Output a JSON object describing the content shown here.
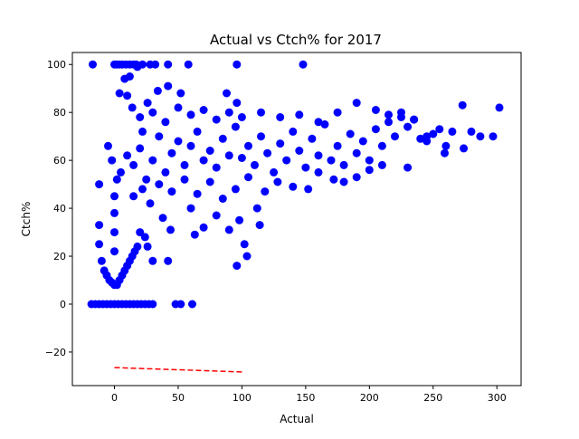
{
  "chart_data": {
    "type": "scatter",
    "title": "Actual vs Ctch% for 2017",
    "xlabel": "Actual",
    "ylabel": "Ctch%",
    "xlim": [
      -33,
      319
    ],
    "ylim": [
      -34,
      105
    ],
    "xticks": [
      0,
      50,
      100,
      150,
      200,
      250,
      300
    ],
    "yticks": [
      -20,
      0,
      20,
      40,
      60,
      80,
      100
    ],
    "grid": false,
    "legend": "none",
    "colors": {
      "points": "#0000ff",
      "trend": "#ff0000"
    },
    "series": [
      {
        "type": "scatter",
        "points": [
          [
            -17,
            100
          ],
          [
            0,
            100
          ],
          [
            2,
            100
          ],
          [
            4,
            100
          ],
          [
            6,
            100
          ],
          [
            9,
            100
          ],
          [
            12,
            100
          ],
          [
            15,
            100
          ],
          [
            17,
            100
          ],
          [
            22,
            100
          ],
          [
            28,
            100
          ],
          [
            32,
            100
          ],
          [
            42,
            100
          ],
          [
            58,
            100
          ],
          [
            96,
            100
          ],
          [
            148,
            100
          ],
          [
            -18,
            0
          ],
          [
            -15,
            0
          ],
          [
            -12,
            0
          ],
          [
            -9,
            0
          ],
          [
            -6,
            0
          ],
          [
            -3,
            0
          ],
          [
            0,
            0
          ],
          [
            3,
            0
          ],
          [
            6,
            0
          ],
          [
            9,
            0
          ],
          [
            12,
            0
          ],
          [
            15,
            0
          ],
          [
            18,
            0
          ],
          [
            21,
            0
          ],
          [
            24,
            0
          ],
          [
            27,
            0
          ],
          [
            30,
            0
          ],
          [
            48,
            0
          ],
          [
            52,
            0
          ],
          [
            61,
            0
          ],
          [
            -12,
            33
          ],
          [
            -12,
            25
          ],
          [
            -10,
            18
          ],
          [
            -8,
            14
          ],
          [
            -6,
            12
          ],
          [
            -4,
            10
          ],
          [
            -2,
            9
          ],
          [
            0,
            8
          ],
          [
            2,
            8
          ],
          [
            4,
            10
          ],
          [
            6,
            12
          ],
          [
            8,
            14
          ],
          [
            10,
            16
          ],
          [
            12,
            18
          ],
          [
            14,
            20
          ],
          [
            16,
            22
          ],
          [
            18,
            24
          ],
          [
            -12,
            50
          ],
          [
            -5,
            66
          ],
          [
            -2,
            60
          ],
          [
            0,
            45
          ],
          [
            0,
            38
          ],
          [
            0,
            30
          ],
          [
            0,
            22
          ],
          [
            2,
            52
          ],
          [
            4,
            88
          ],
          [
            8,
            94
          ],
          [
            10,
            87
          ],
          [
            12,
            95
          ],
          [
            14,
            82
          ],
          [
            18,
            99
          ],
          [
            22,
            72
          ],
          [
            26,
            84
          ],
          [
            34,
            89
          ],
          [
            42,
            91
          ],
          [
            52,
            88
          ],
          [
            88,
            88
          ],
          [
            96,
            84
          ],
          [
            20,
            30
          ],
          [
            24,
            28
          ],
          [
            26,
            24
          ],
          [
            30,
            18
          ],
          [
            38,
            36
          ],
          [
            42,
            18
          ],
          [
            44,
            31
          ],
          [
            60,
            40
          ],
          [
            63,
            29
          ],
          [
            70,
            32
          ],
          [
            80,
            37
          ],
          [
            90,
            31
          ],
          [
            96,
            16
          ],
          [
            98,
            35
          ],
          [
            102,
            25
          ],
          [
            104,
            20
          ],
          [
            112,
            40
          ],
          [
            114,
            33
          ],
          [
            5,
            55
          ],
          [
            10,
            62
          ],
          [
            15,
            58
          ],
          [
            20,
            65
          ],
          [
            25,
            52
          ],
          [
            30,
            60
          ],
          [
            35,
            70
          ],
          [
            40,
            55
          ],
          [
            45,
            63
          ],
          [
            50,
            68
          ],
          [
            55,
            58
          ],
          [
            60,
            66
          ],
          [
            65,
            72
          ],
          [
            70,
            60
          ],
          [
            75,
            64
          ],
          [
            80,
            57
          ],
          [
            85,
            69
          ],
          [
            90,
            62
          ],
          [
            95,
            74
          ],
          [
            100,
            61
          ],
          [
            105,
            66
          ],
          [
            110,
            58
          ],
          [
            115,
            70
          ],
          [
            120,
            63
          ],
          [
            125,
            55
          ],
          [
            130,
            67
          ],
          [
            135,
            60
          ],
          [
            140,
            72
          ],
          [
            145,
            64
          ],
          [
            150,
            57
          ],
          [
            155,
            69
          ],
          [
            160,
            62
          ],
          [
            165,
            75
          ],
          [
            170,
            60
          ],
          [
            175,
            66
          ],
          [
            180,
            58
          ],
          [
            185,
            71
          ],
          [
            190,
            63
          ],
          [
            195,
            68
          ],
          [
            200,
            60
          ],
          [
            205,
            73
          ],
          [
            210,
            66
          ],
          [
            215,
            76
          ],
          [
            220,
            70
          ],
          [
            225,
            78
          ],
          [
            230,
            74
          ],
          [
            235,
            77
          ],
          [
            240,
            69
          ],
          [
            245,
            68
          ],
          [
            250,
            71
          ],
          [
            255,
            73
          ],
          [
            260,
            66
          ],
          [
            265,
            72
          ],
          [
            280,
            72
          ],
          [
            287,
            70
          ],
          [
            297,
            70
          ],
          [
            302,
            82
          ],
          [
            273,
            83
          ],
          [
            274,
            65
          ],
          [
            259,
            63
          ],
          [
            245,
            70
          ],
          [
            230,
            57
          ],
          [
            15,
            45
          ],
          [
            22,
            48
          ],
          [
            28,
            42
          ],
          [
            35,
            50
          ],
          [
            45,
            47
          ],
          [
            55,
            52
          ],
          [
            65,
            46
          ],
          [
            75,
            51
          ],
          [
            85,
            44
          ],
          [
            95,
            48
          ],
          [
            105,
            53
          ],
          [
            118,
            47
          ],
          [
            128,
            51
          ],
          [
            140,
            49
          ],
          [
            152,
            48
          ],
          [
            160,
            55
          ],
          [
            172,
            52
          ],
          [
            180,
            51
          ],
          [
            190,
            53
          ],
          [
            200,
            56
          ],
          [
            210,
            58
          ],
          [
            20,
            78
          ],
          [
            30,
            80
          ],
          [
            40,
            76
          ],
          [
            50,
            82
          ],
          [
            60,
            79
          ],
          [
            70,
            81
          ],
          [
            80,
            77
          ],
          [
            90,
            80
          ],
          [
            100,
            78
          ],
          [
            115,
            80
          ],
          [
            130,
            78
          ],
          [
            145,
            79
          ],
          [
            160,
            76
          ],
          [
            175,
            80
          ],
          [
            190,
            84
          ],
          [
            205,
            81
          ],
          [
            215,
            79
          ],
          [
            225,
            80
          ],
          [
            235,
            77
          ]
        ]
      },
      {
        "type": "line",
        "style": "dashed",
        "points": [
          [
            0,
            -26.5
          ],
          [
            100,
            -28.3
          ]
        ]
      }
    ]
  }
}
